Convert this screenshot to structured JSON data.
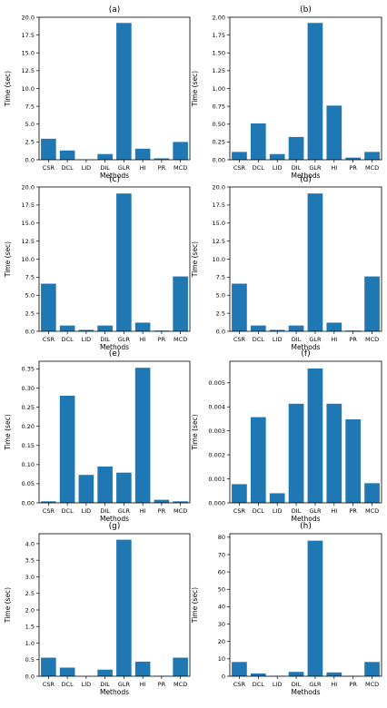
{
  "chart_data": [
    {
      "type": "bar",
      "title": "(a)",
      "xlabel": "Methods",
      "ylabel": "Time (sec)",
      "categories": [
        "CSR",
        "DCL",
        "LID",
        "DIL",
        "GLR",
        "HI",
        "PR",
        "MCD"
      ],
      "values": [
        2.95,
        1.3,
        0.05,
        0.8,
        19.2,
        1.55,
        0.2,
        2.5
      ],
      "ylim": [
        0,
        20
      ],
      "yticks": [
        "0.0",
        "2.5",
        "5.0",
        "7.5",
        "10.0",
        "12.5",
        "15.0",
        "17.5",
        "20.0"
      ]
    },
    {
      "type": "bar",
      "title": "(b)",
      "xlabel": "Methods",
      "ylabel": "Time (sec)",
      "categories": [
        "CSR",
        "DCL",
        "LID",
        "DIL",
        "GLR",
        "HI",
        "PR",
        "MCD"
      ],
      "values": [
        0.11,
        0.51,
        0.08,
        0.32,
        1.92,
        0.76,
        0.03,
        0.11
      ],
      "ylim": [
        0,
        2
      ],
      "yticks": [
        "0.00",
        "0.25",
        "0.50",
        "0.75",
        "1.00",
        "1.25",
        "1.50",
        "1.75",
        "2.00"
      ]
    },
    {
      "type": "bar",
      "title": "(c)",
      "xlabel": "Methods",
      "ylabel": "Time (sec)",
      "categories": [
        "CSR",
        "DCL",
        "LID",
        "DIL",
        "GLR",
        "HI",
        "PR",
        "MCD"
      ],
      "values": [
        6.6,
        0.8,
        0.2,
        0.8,
        19.1,
        1.2,
        0.1,
        7.6
      ],
      "ylim": [
        0,
        20
      ],
      "yticks": [
        "0.0",
        "2.5",
        "5.0",
        "7.5",
        "10.0",
        "12.5",
        "15.0",
        "17.5",
        "20.0"
      ]
    },
    {
      "type": "bar",
      "title": "(d)",
      "xlabel": "Methods",
      "ylabel": "Time (sec)",
      "categories": [
        "CSR",
        "DCL",
        "LID",
        "DIL",
        "GLR",
        "HI",
        "PR",
        "MCD"
      ],
      "values": [
        6.6,
        0.8,
        0.2,
        0.8,
        19.1,
        1.2,
        0.1,
        7.6
      ],
      "ylim": [
        0,
        20
      ],
      "yticks": [
        "0.0",
        "2.5",
        "5.0",
        "7.5",
        "10.0",
        "12.5",
        "15.0",
        "17.5",
        "20.0"
      ]
    },
    {
      "type": "bar",
      "title": "(e)",
      "xlabel": "Methods",
      "ylabel": "Time (sec)",
      "categories": [
        "CSR",
        "DCL",
        "LID",
        "DIL",
        "GLR",
        "HI",
        "PR",
        "MCD"
      ],
      "values": [
        0.004,
        0.28,
        0.073,
        0.095,
        0.079,
        0.353,
        0.008,
        0.004
      ],
      "ylim": [
        0,
        0.37
      ],
      "yticks": [
        "0.00",
        "0.05",
        "0.10",
        "0.15",
        "0.20",
        "0.25",
        "0.30",
        "0.35"
      ]
    },
    {
      "type": "bar",
      "title": "(f)",
      "xlabel": "Methods",
      "ylabel": "Time (sec)",
      "categories": [
        "CSR",
        "DCL",
        "LID",
        "DIL",
        "GLR",
        "HI",
        "PR",
        "MCD"
      ],
      "values": [
        0.00078,
        0.00357,
        0.0004,
        0.00413,
        0.0056,
        0.00413,
        0.00348,
        0.00082
      ],
      "ylim": [
        0,
        0.0059
      ],
      "yticks": [
        "0.000",
        "0.001",
        "0.002",
        "0.003",
        "0.004",
        "0.005"
      ]
    },
    {
      "type": "bar",
      "title": "(g)",
      "xlabel": "Methods",
      "ylabel": "Time (sec)",
      "categories": [
        "CSR",
        "DCL",
        "LID",
        "DIL",
        "GLR",
        "HI",
        "PR",
        "MCD"
      ],
      "values": [
        0.56,
        0.26,
        0.0,
        0.2,
        4.12,
        0.44,
        0.01,
        0.56
      ],
      "ylim": [
        0,
        4.3
      ],
      "yticks": [
        "0.0",
        "0.5",
        "1.0",
        "1.5",
        "2.0",
        "2.5",
        "3.0",
        "3.5",
        "4.0"
      ]
    },
    {
      "type": "bar",
      "title": "(h)",
      "xlabel": "Methods",
      "ylabel": "Time (sec)",
      "categories": [
        "CSR",
        "DCL",
        "LID",
        "DIL",
        "GLR",
        "HI",
        "PR",
        "MCD"
      ],
      "values": [
        8.2,
        1.6,
        0.2,
        2.5,
        78.0,
        2.2,
        0.2,
        8.2
      ],
      "ylim": [
        0,
        82
      ],
      "yticks": [
        "0",
        "10",
        "20",
        "30",
        "40",
        "50",
        "60",
        "70",
        "80"
      ]
    }
  ]
}
